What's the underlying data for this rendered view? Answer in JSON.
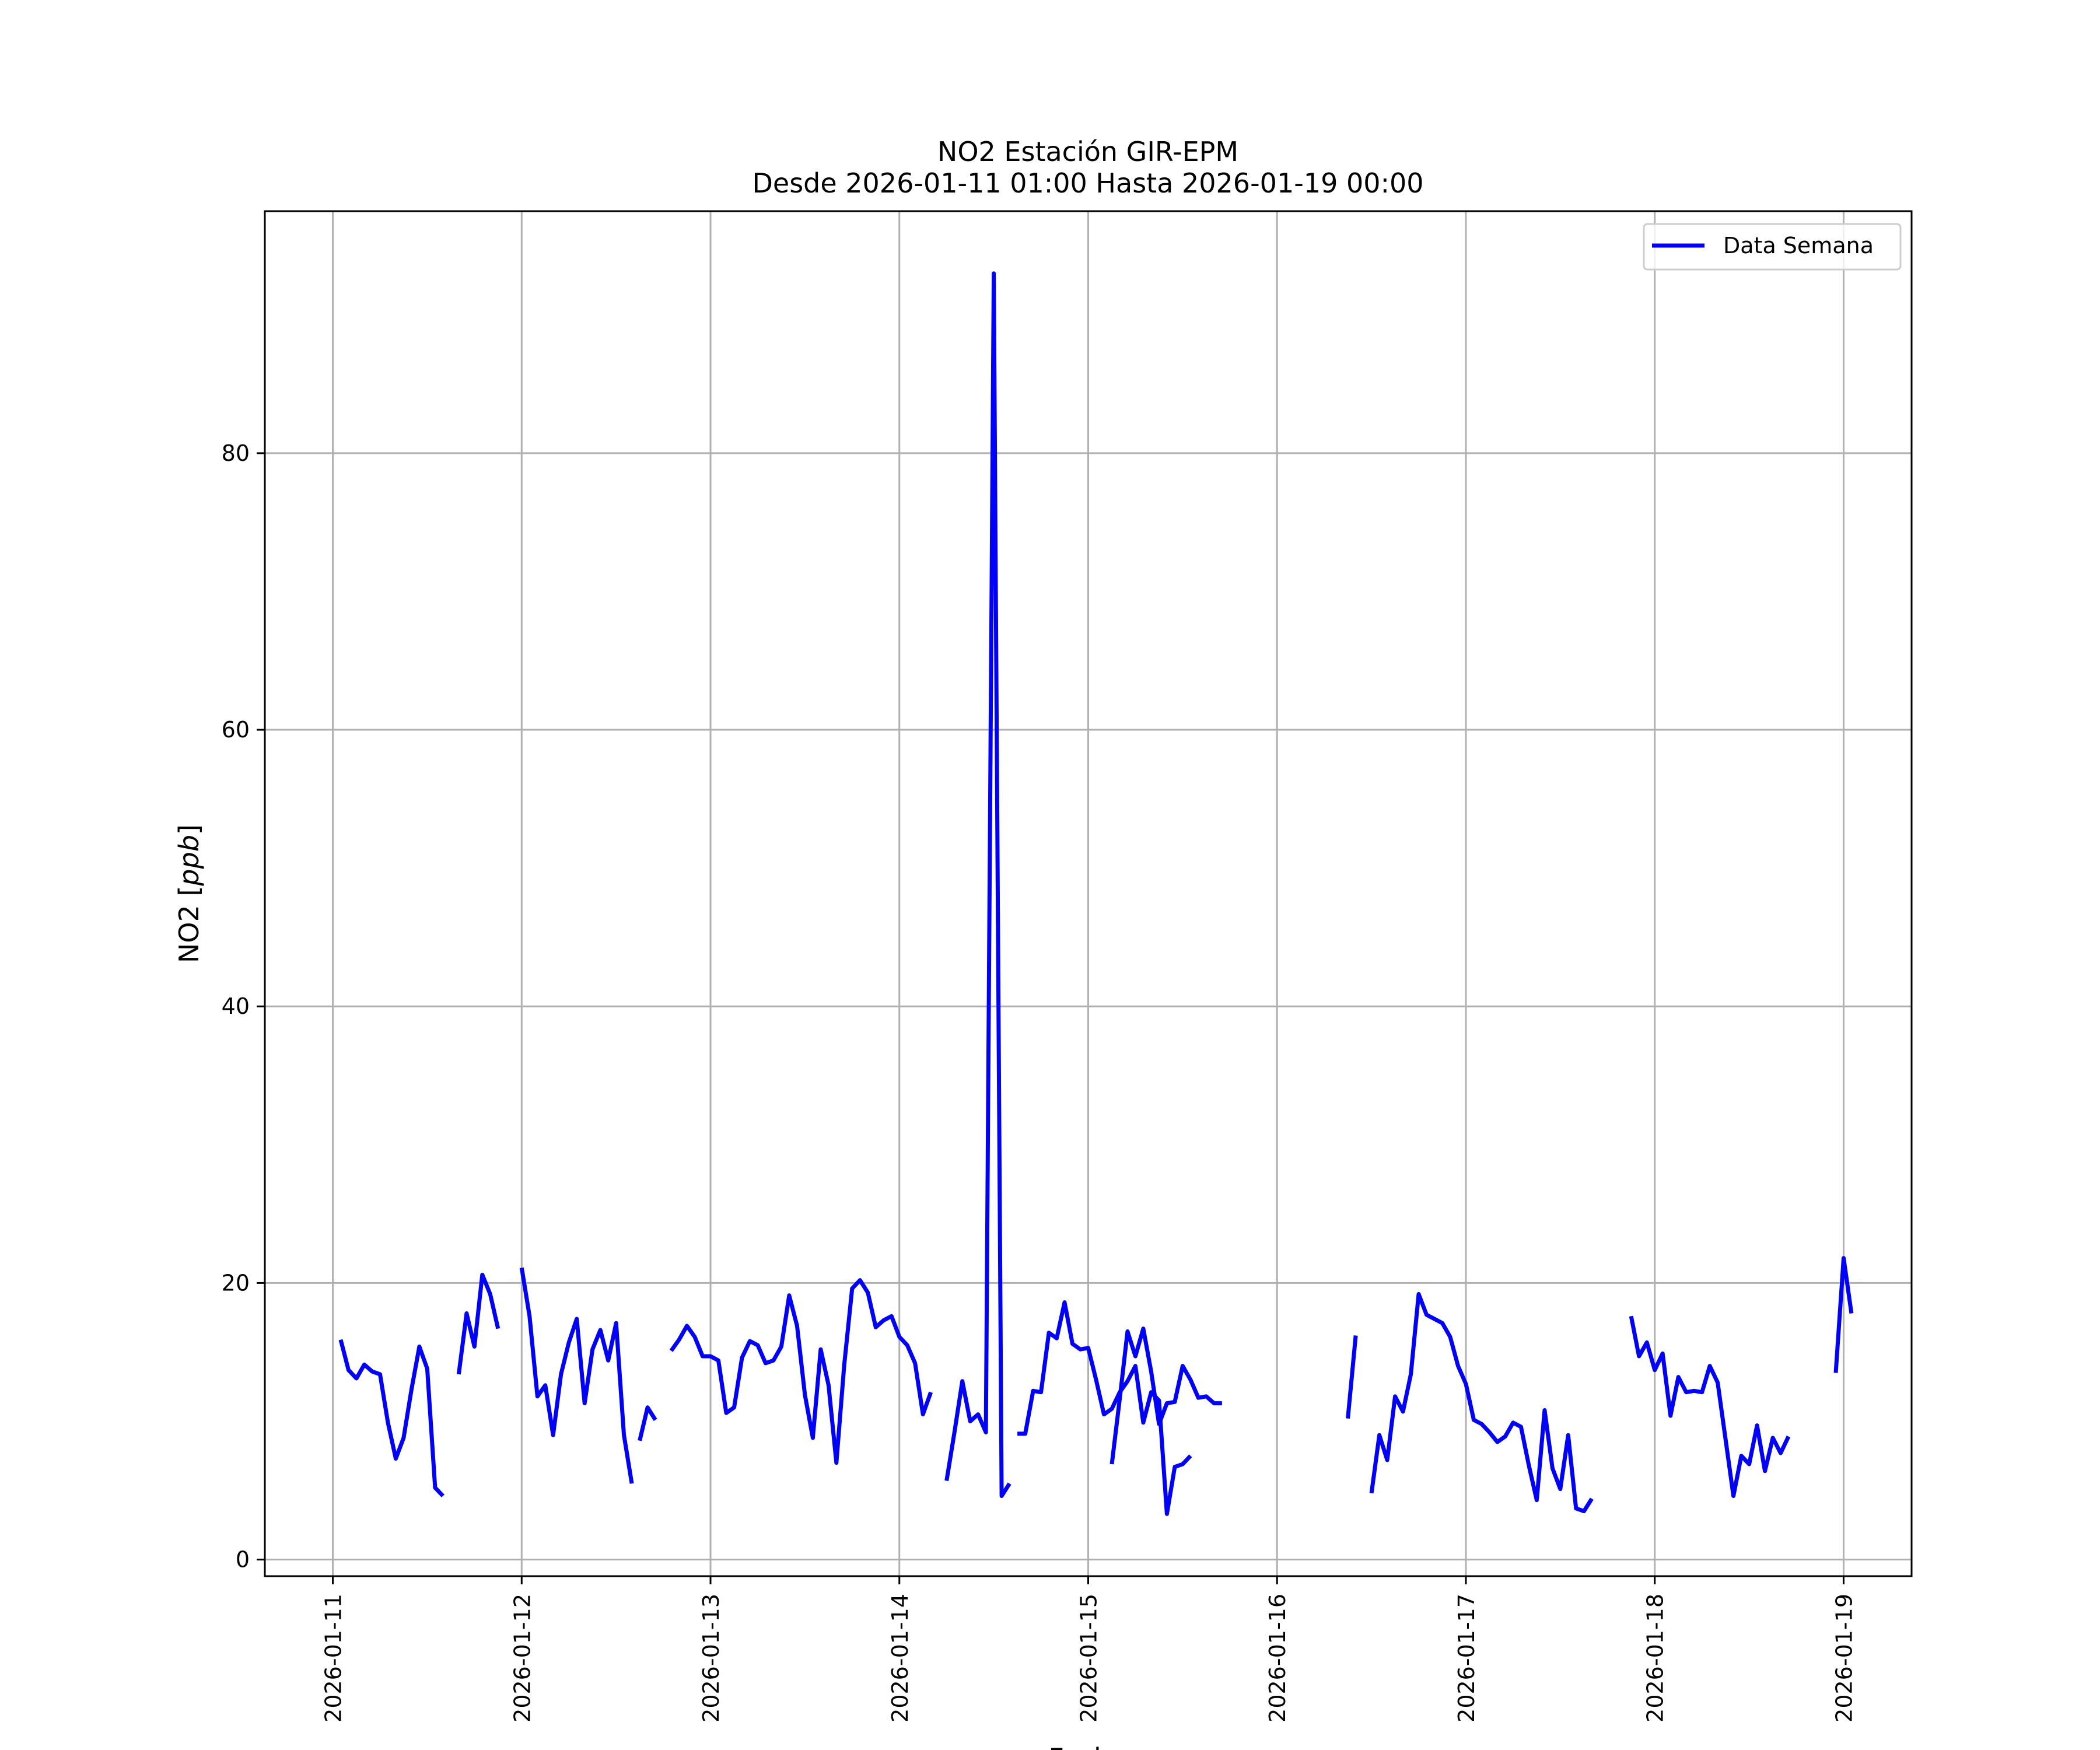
{
  "chart_data": {
    "type": "line",
    "title": "NO2 Estación GIR-EPM",
    "subtitle": "Desde 2026-01-11 01:00 Hasta 2026-01-19 00:00",
    "xlabel": "Fecha",
    "ylabel_main": "NO2 [",
    "ylabel_unit": "ppb",
    "ylabel_close": "]",
    "x_start": "2026-01-11 01:00",
    "xlim_days": [
      -0.36,
      8.36
    ],
    "ylim": [
      -1.2,
      97.5
    ],
    "grid": true,
    "legend_position": "top-right",
    "x_ticks": [
      "2026-01-11",
      "2026-01-12",
      "2026-01-13",
      "2026-01-14",
      "2026-01-15",
      "2026-01-16",
      "2026-01-17",
      "2026-01-18",
      "2026-01-19"
    ],
    "y_ticks": [
      0,
      20,
      40,
      60,
      80
    ],
    "series": [
      {
        "name": "Data Semana",
        "color": "#0000ff",
        "segments": [
          [
            15.9,
            13.7,
            13.1,
            14.1,
            13.6,
            13.4,
            9.9,
            7.3,
            8.8,
            12.3,
            15.4,
            13.8,
            5.2,
            4.6
          ],
          [
            13.4,
            17.8,
            15.4,
            20.6,
            19.2,
            16.7
          ],
          [
            21.1,
            17.6,
            11.8,
            12.6,
            9.0,
            13.4,
            15.7,
            17.4,
            11.3,
            15.2,
            16.6,
            14.4,
            17.1,
            9.0,
            5.5
          ],
          [
            8.6,
            11.0,
            10.1
          ],
          [
            15.1,
            15.9,
            16.9,
            16.1,
            14.7,
            14.7,
            14.4,
            10.6,
            11.0,
            14.6,
            15.8,
            15.5,
            14.2,
            14.4,
            15.4,
            19.1,
            16.9,
            11.9,
            8.8,
            15.2,
            12.6,
            7.0,
            14.1,
            19.6,
            20.2,
            19.3,
            16.8,
            17.3,
            17.6,
            16.1,
            15.5,
            14.2,
            10.5,
            12.1
          ],
          [
            5.7,
            9.2,
            12.9,
            10.0,
            10.5,
            9.2,
            93.0,
            4.6,
            5.5
          ],
          [
            9.1,
            9.1,
            12.2,
            12.1,
            16.4,
            16.0,
            18.6,
            15.6,
            15.2,
            15.3,
            13.0,
            10.5,
            10.9,
            12.1,
            12.9,
            14.0,
            9.9,
            12.1,
            11.5,
            3.3,
            6.7,
            6.9,
            7.5
          ],
          [
            6.9,
            11.6,
            16.5,
            14.7,
            16.7,
            13.6,
            9.8,
            11.3,
            11.4,
            14.0,
            13.0,
            11.7,
            11.8,
            11.3,
            11.3
          ],
          [
            10.2,
            16.2
          ],
          [
            4.8,
            9.0,
            7.2,
            11.8,
            10.7,
            13.4,
            19.2,
            17.7,
            17.4,
            17.1,
            16.1,
            14.0,
            12.7,
            10.1,
            9.8,
            9.2,
            8.5,
            8.9,
            9.9,
            9.6,
            6.8,
            4.3,
            10.8,
            6.6,
            5.1,
            9.0,
            3.7,
            3.5,
            4.4
          ],
          [
            17.6,
            14.7,
            15.7,
            13.7,
            14.9,
            10.4,
            13.2,
            12.1,
            12.2,
            12.1,
            14.0,
            12.8,
            8.7,
            4.6,
            7.5,
            6.9,
            9.7,
            6.4,
            8.8,
            7.7,
            8.9
          ],
          [
            13.5,
            21.8,
            17.8
          ]
        ],
        "segment_start_hours": [
          0,
          15,
          23,
          38,
          42,
          77,
          86,
          98,
          128,
          131,
          164,
          190
        ]
      }
    ]
  }
}
